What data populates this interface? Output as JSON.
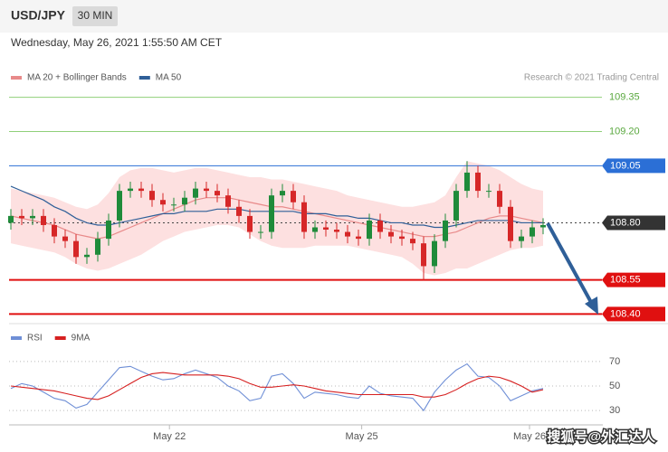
{
  "header": {
    "symbol": "USD/JPY",
    "interval": "30 MIN",
    "timestamp": "Wednesday, May 26, 2021 1:55:50 AM CET"
  },
  "watermark": "搜狐号@外汇达人",
  "chart_data": [
    {
      "type": "candlestick",
      "credit": "Research © 2021 Trading Central",
      "xlim": [
        -0.5,
        54.5
      ],
      "ylim": [
        108.37,
        109.4
      ],
      "up_color": "#1f8b3a",
      "down_color": "#d62728",
      "open": [
        108.8,
        108.83,
        108.82,
        108.83,
        108.79,
        108.74,
        108.72,
        108.65,
        108.66,
        108.73,
        108.81,
        108.94,
        108.95,
        108.94,
        108.9,
        108.88,
        108.88,
        108.91,
        108.95,
        108.94,
        108.92,
        108.87,
        108.83,
        108.76,
        108.76,
        108.92,
        108.94,
        108.89,
        108.76,
        108.78,
        108.77,
        108.76,
        108.74,
        108.73,
        108.81,
        108.76,
        108.74,
        108.73,
        108.71,
        108.61,
        108.72,
        108.81,
        108.94,
        109.02,
        108.94,
        108.94,
        108.87,
        108.72,
        108.74,
        108.78
      ],
      "high": [
        108.86,
        108.86,
        108.86,
        108.86,
        108.82,
        108.77,
        108.75,
        108.69,
        108.76,
        108.84,
        108.97,
        108.98,
        108.98,
        108.97,
        108.93,
        108.91,
        108.94,
        108.98,
        108.98,
        108.97,
        108.95,
        108.9,
        108.86,
        108.79,
        108.95,
        108.97,
        108.97,
        108.92,
        108.81,
        108.81,
        108.8,
        108.79,
        108.77,
        108.84,
        108.84,
        108.79,
        108.77,
        108.76,
        108.74,
        108.75,
        108.84,
        108.97,
        109.07,
        109.05,
        108.97,
        108.97,
        108.9,
        108.77,
        108.81,
        108.82
      ],
      "low": [
        108.77,
        108.79,
        108.79,
        108.76,
        108.71,
        108.69,
        108.62,
        108.62,
        108.63,
        108.7,
        108.78,
        108.91,
        108.91,
        108.87,
        108.85,
        108.85,
        108.85,
        108.88,
        108.91,
        108.89,
        108.84,
        108.8,
        108.73,
        108.73,
        108.73,
        108.89,
        108.86,
        108.73,
        108.73,
        108.74,
        108.73,
        108.71,
        108.7,
        108.7,
        108.73,
        108.71,
        108.7,
        108.68,
        108.55,
        108.58,
        108.69,
        108.78,
        108.91,
        108.91,
        108.91,
        108.84,
        108.69,
        108.69,
        108.71,
        108.75
      ],
      "close": [
        108.83,
        108.82,
        108.83,
        108.79,
        108.74,
        108.72,
        108.65,
        108.66,
        108.73,
        108.81,
        108.94,
        108.95,
        108.94,
        108.9,
        108.88,
        108.88,
        108.91,
        108.95,
        108.94,
        108.92,
        108.87,
        108.83,
        108.76,
        108.76,
        108.92,
        108.94,
        108.89,
        108.76,
        108.78,
        108.77,
        108.76,
        108.74,
        108.73,
        108.81,
        108.76,
        108.74,
        108.73,
        108.71,
        108.61,
        108.72,
        108.81,
        108.94,
        109.02,
        108.94,
        108.94,
        108.87,
        108.72,
        108.74,
        108.78,
        108.79
      ],
      "bands": {
        "color": "#fde0e0",
        "upper": [
          108.95,
          108.94,
          108.93,
          108.92,
          108.91,
          108.89,
          108.87,
          108.86,
          108.88,
          108.93,
          109.0,
          109.03,
          109.04,
          109.04,
          109.03,
          109.02,
          109.03,
          109.04,
          109.04,
          109.03,
          109.02,
          109.01,
          109.0,
          109.0,
          108.99,
          108.99,
          108.98,
          108.97,
          108.96,
          108.95,
          108.94,
          108.92,
          108.91,
          108.9,
          108.89,
          108.88,
          108.87,
          108.87,
          108.88,
          108.89,
          108.92,
          109.0,
          109.07,
          109.06,
          109.05,
          109.03,
          109.0,
          108.97,
          108.95,
          108.94
        ],
        "lower": [
          108.71,
          108.7,
          108.69,
          108.68,
          108.67,
          108.65,
          108.62,
          108.6,
          108.59,
          108.6,
          108.62,
          108.64,
          108.66,
          108.69,
          108.72,
          108.74,
          108.76,
          108.77,
          108.78,
          108.79,
          108.79,
          108.78,
          108.75,
          108.72,
          108.7,
          108.69,
          108.69,
          108.69,
          108.7,
          108.7,
          108.7,
          108.7,
          108.69,
          108.68,
          108.67,
          108.66,
          108.65,
          108.62,
          108.58,
          108.57,
          108.58,
          108.6,
          108.6,
          108.62,
          108.64,
          108.66,
          108.68,
          108.69,
          108.69,
          108.7
        ]
      },
      "series": [
        {
          "name": "MA 20 + Bollinger Bands",
          "color": "#e88a8a",
          "values": [
            108.83,
            108.82,
            108.81,
            108.8,
            108.79,
            108.77,
            108.75,
            108.74,
            108.73,
            108.74,
            108.76,
            108.78,
            108.8,
            108.82,
            108.84,
            108.86,
            108.88,
            108.9,
            108.91,
            108.91,
            108.91,
            108.9,
            108.89,
            108.88,
            108.87,
            108.87,
            108.86,
            108.85,
            108.84,
            108.83,
            108.82,
            108.81,
            108.8,
            108.79,
            108.78,
            108.77,
            108.76,
            108.75,
            108.74,
            108.74,
            108.75,
            108.76,
            108.78,
            108.8,
            108.82,
            108.83,
            108.83,
            108.82,
            108.81,
            108.8
          ]
        },
        {
          "name": "MA 50",
          "color": "#2f5f98",
          "values": [
            108.96,
            108.94,
            108.92,
            108.9,
            108.87,
            108.85,
            108.82,
            108.8,
            108.79,
            108.79,
            108.8,
            108.81,
            108.82,
            108.83,
            108.84,
            108.84,
            108.85,
            108.85,
            108.85,
            108.86,
            108.86,
            108.86,
            108.85,
            108.85,
            108.85,
            108.85,
            108.85,
            108.84,
            108.84,
            108.84,
            108.83,
            108.83,
            108.82,
            108.82,
            108.81,
            108.8,
            108.8,
            108.79,
            108.79,
            108.78,
            108.78,
            108.79,
            108.8,
            108.81,
            108.81,
            108.81,
            108.81,
            108.8,
            108.8,
            108.8
          ]
        }
      ],
      "levels": [
        {
          "value": 109.35,
          "color": "#8fcf7a",
          "style": "text"
        },
        {
          "value": 109.2,
          "label": "109.20",
          "color": "#8fcf7a",
          "style": "text"
        },
        {
          "value": 109.05,
          "color": "#2b6fd6",
          "style": "tag"
        },
        {
          "value": 108.8,
          "label": "108.80",
          "color": "#333333",
          "style": "dotted"
        },
        {
          "value": 108.55,
          "color": "#e01010",
          "style": "tag"
        },
        {
          "value": 108.4,
          "label": "108.40",
          "color": "#e01010",
          "style": "tag"
        }
      ],
      "xticks": [
        {
          "value": 14.6,
          "label": "May 22"
        },
        {
          "value": 32.3,
          "label": "May 25"
        },
        {
          "value": 47.75,
          "label": "May 26"
        }
      ]
    },
    {
      "type": "line",
      "xlim": [
        -0.5,
        54.5
      ],
      "ylim": [
        22,
        78
      ],
      "yticks": [
        70,
        50,
        30
      ],
      "grid": true,
      "series": [
        {
          "name": "RSI",
          "color": "#6f8fd6",
          "values": [
            48,
            52,
            50,
            45,
            40,
            38,
            32,
            35,
            45,
            55,
            65,
            66,
            62,
            58,
            55,
            56,
            60,
            63,
            60,
            57,
            50,
            46,
            38,
            40,
            58,
            60,
            52,
            40,
            45,
            44,
            43,
            41,
            40,
            50,
            44,
            42,
            41,
            40,
            30,
            45,
            55,
            63,
            68,
            58,
            57,
            50,
            38,
            42,
            46,
            48
          ]
        },
        {
          "name": "9MA",
          "color": "#d62020",
          "values": [
            50,
            49,
            48,
            47,
            46,
            44,
            42,
            40,
            39,
            42,
            47,
            52,
            57,
            60,
            61,
            60,
            59,
            59,
            59,
            59,
            58,
            56,
            52,
            49,
            49,
            50,
            51,
            50,
            48,
            46,
            45,
            44,
            43,
            43,
            43,
            43,
            43,
            43,
            41,
            41,
            43,
            47,
            52,
            56,
            58,
            57,
            54,
            50,
            45,
            47
          ]
        }
      ]
    }
  ]
}
